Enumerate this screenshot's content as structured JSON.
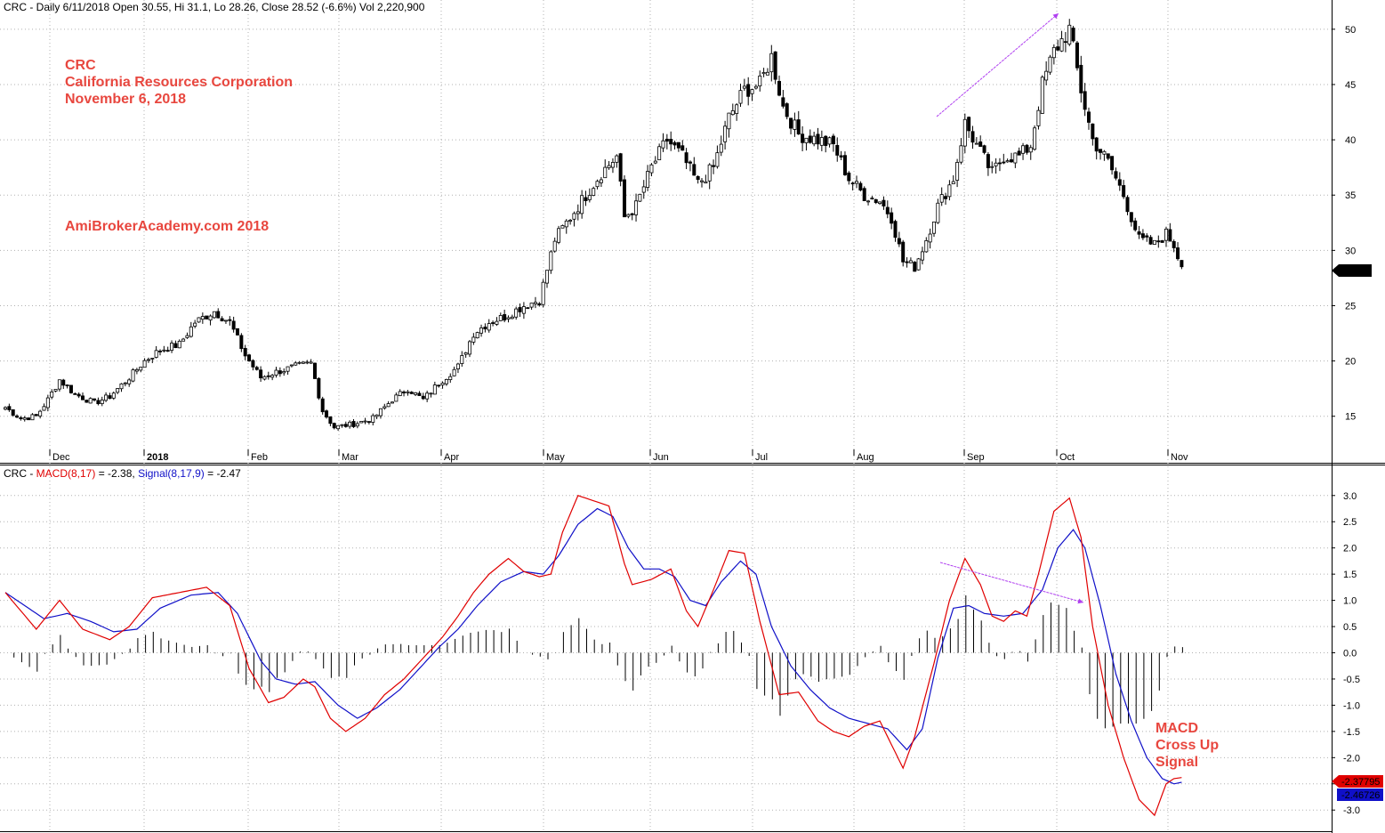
{
  "header_price": {
    "symbol": "CRC",
    "text": "CRC - Daily 6/11/2018 Open 30.55, Hi 31.1, Lo 28.26, Close 28.52 (-6.6%) Vol 2,220,900"
  },
  "header_macd": {
    "prefix": "CRC - ",
    "macd_label": "MACD(8,17)",
    "macd_value": " = -2.38, ",
    "signal_label": "Signal(8,17,9)",
    "signal_value": " = -2.47"
  },
  "annotations": {
    "ticker": "CRC",
    "company": "California Resources Corporation",
    "date": "November 6, 2018",
    "site": "AmiBrokerAcademy.com  2018",
    "macd_note": [
      "MACD",
      "Cross Up",
      "Signal"
    ]
  },
  "colors": {
    "macd_line": "#e00000",
    "signal_line": "#1010c8",
    "annotation_text": "#e8473f",
    "arrow": "#b040f0",
    "up_candle": "#ffffff",
    "down_candle": "#000000"
  },
  "chart_data": [
    {
      "type": "candlestick",
      "title": "CRC - Daily",
      "ylim": [
        12,
        52
      ],
      "y_ticks": [
        15,
        20,
        25,
        30,
        35,
        40,
        45,
        50
      ],
      "y_tick_labels": [
        "15",
        "20",
        "25",
        "30",
        "35",
        "40",
        "45",
        "50"
      ],
      "month_labels": [
        "Dec",
        "2018",
        "Feb",
        "Mar",
        "Apr",
        "May",
        "Jun",
        "Jul",
        "Aug",
        "Sep",
        "Oct",
        "Nov"
      ],
      "last_price_label": "28.52",
      "last_price": 28.52,
      "grid": true,
      "close_anchors": [
        [
          0,
          15.8
        ],
        [
          4,
          14.8
        ],
        [
          8,
          15.0
        ],
        [
          11,
          16.5
        ],
        [
          14,
          18.3
        ],
        [
          18,
          17.0
        ],
        [
          23,
          16.2
        ],
        [
          27,
          16.8
        ],
        [
          32,
          18.5
        ],
        [
          36,
          20.0
        ],
        [
          40,
          21.0
        ],
        [
          45,
          21.5
        ],
        [
          49,
          23.5
        ],
        [
          54,
          24.5
        ],
        [
          58,
          23.5
        ],
        [
          62,
          20.5
        ],
        [
          66,
          18.5
        ],
        [
          70,
          19.0
        ],
        [
          75,
          19.5
        ],
        [
          79,
          19.8
        ],
        [
          82,
          15.5
        ],
        [
          85,
          14.0
        ],
        [
          90,
          14.3
        ],
        [
          95,
          14.8
        ],
        [
          100,
          16.5
        ],
        [
          104,
          17.5
        ],
        [
          108,
          16.5
        ],
        [
          112,
          18.0
        ],
        [
          117,
          19.5
        ],
        [
          121,
          22.5
        ],
        [
          125,
          23.5
        ],
        [
          129,
          24.0
        ],
        [
          134,
          25.0
        ],
        [
          138,
          25.5
        ],
        [
          142,
          31.0
        ],
        [
          146,
          33.0
        ],
        [
          150,
          35.0
        ],
        [
          154,
          37.0
        ],
        [
          158,
          38.5
        ],
        [
          160,
          33.0
        ],
        [
          163,
          34.0
        ],
        [
          167,
          37.5
        ],
        [
          171,
          40.0
        ],
        [
          175,
          38.5
        ],
        [
          179,
          36.0
        ],
        [
          183,
          37.5
        ],
        [
          187,
          42.0
        ],
        [
          191,
          44.5
        ],
        [
          195,
          45.0
        ],
        [
          198,
          47.5
        ],
        [
          201,
          43.0
        ],
        [
          205,
          40.5
        ],
        [
          210,
          40.0
        ],
        [
          214,
          39.5
        ],
        [
          218,
          36.5
        ],
        [
          222,
          35.0
        ],
        [
          226,
          34.5
        ],
        [
          229,
          33.0
        ],
        [
          232,
          29.0
        ],
        [
          235,
          28.5
        ],
        [
          238,
          31.0
        ],
        [
          241,
          34.0
        ],
        [
          245,
          36.5
        ],
        [
          248,
          41.5
        ],
        [
          251,
          39.5
        ],
        [
          255,
          37.0
        ],
        [
          258,
          38.5
        ],
        [
          262,
          38.5
        ],
        [
          265,
          39.5
        ],
        [
          268,
          45.0
        ],
        [
          271,
          48.0
        ],
        [
          275,
          50.0
        ],
        [
          278,
          44.5
        ],
        [
          281,
          40.0
        ],
        [
          285,
          38.0
        ],
        [
          289,
          35.0
        ],
        [
          293,
          31.0
        ],
        [
          297,
          30.5
        ],
        [
          300,
          31.5
        ],
        [
          302,
          30.5
        ],
        [
          304,
          28.52
        ]
      ]
    },
    {
      "type": "line",
      "title": "MACD(8,17), Signal(8,17,9)",
      "ylim": [
        -3.2,
        3.2
      ],
      "y_ticks": [
        -3.0,
        -2.5,
        -2.0,
        -1.5,
        -1.0,
        -0.5,
        0.0,
        0.5,
        1.0,
        1.5,
        2.0,
        2.5,
        3.0
      ],
      "y_tick_labels": [
        "-3.0",
        "-2.5",
        "-2.0",
        "-1.5",
        "-1.0",
        "-0.5",
        "0.0",
        "0.5",
        "1.0",
        "1.5",
        "2.0",
        "2.5",
        "3.0"
      ],
      "last_values": {
        "macd": -2.37795,
        "signal": -2.46726
      },
      "last_value_labels": {
        "macd": "-2.37795",
        "signal": "-2.46726"
      },
      "series": [
        {
          "name": "MACD(8,17)",
          "color": "#e00000",
          "points": [
            [
              0,
              1.15
            ],
            [
              8,
              0.45
            ],
            [
              14,
              1.0
            ],
            [
              20,
              0.45
            ],
            [
              27,
              0.25
            ],
            [
              32,
              0.5
            ],
            [
              38,
              1.05
            ],
            [
              45,
              1.15
            ],
            [
              52,
              1.25
            ],
            [
              58,
              0.9
            ],
            [
              63,
              -0.3
            ],
            [
              68,
              -0.95
            ],
            [
              72,
              -0.85
            ],
            [
              77,
              -0.5
            ],
            [
              80,
              -0.65
            ],
            [
              84,
              -1.25
            ],
            [
              88,
              -1.5
            ],
            [
              93,
              -1.25
            ],
            [
              98,
              -0.8
            ],
            [
              103,
              -0.5
            ],
            [
              108,
              -0.1
            ],
            [
              113,
              0.3
            ],
            [
              117,
              0.7
            ],
            [
              121,
              1.15
            ],
            [
              125,
              1.5
            ],
            [
              130,
              1.8
            ],
            [
              134,
              1.55
            ],
            [
              138,
              1.45
            ],
            [
              141,
              1.5
            ],
            [
              144,
              2.3
            ],
            [
              148,
              3.0
            ],
            [
              152,
              2.9
            ],
            [
              156,
              2.8
            ],
            [
              160,
              1.7
            ],
            [
              162,
              1.3
            ],
            [
              167,
              1.4
            ],
            [
              172,
              1.6
            ],
            [
              176,
              0.8
            ],
            [
              179,
              0.5
            ],
            [
              183,
              1.2
            ],
            [
              187,
              1.95
            ],
            [
              191,
              1.9
            ],
            [
              195,
              0.6
            ],
            [
              200,
              -0.8
            ],
            [
              205,
              -0.75
            ],
            [
              210,
              -1.3
            ],
            [
              214,
              -1.5
            ],
            [
              218,
              -1.6
            ],
            [
              222,
              -1.4
            ],
            [
              226,
              -1.3
            ],
            [
              229,
              -1.75
            ],
            [
              232,
              -2.2
            ],
            [
              235,
              -1.6
            ],
            [
              240,
              -0.2
            ],
            [
              244,
              1.0
            ],
            [
              248,
              1.8
            ],
            [
              252,
              1.3
            ],
            [
              255,
              0.7
            ],
            [
              258,
              0.6
            ],
            [
              261,
              0.8
            ],
            [
              264,
              0.7
            ],
            [
              267,
              1.5
            ],
            [
              271,
              2.7
            ],
            [
              275,
              2.95
            ],
            [
              278,
              2.2
            ],
            [
              281,
              0.5
            ],
            [
              285,
              -1.0
            ],
            [
              289,
              -2.0
            ],
            [
              293,
              -2.8
            ],
            [
              297,
              -3.1
            ],
            [
              300,
              -2.5
            ],
            [
              302,
              -2.4
            ],
            [
              304,
              -2.38
            ]
          ]
        },
        {
          "name": "Signal(8,17,9)",
          "color": "#1010c8",
          "points": [
            [
              0,
              1.15
            ],
            [
              6,
              0.85
            ],
            [
              10,
              0.65
            ],
            [
              16,
              0.75
            ],
            [
              22,
              0.6
            ],
            [
              28,
              0.4
            ],
            [
              34,
              0.45
            ],
            [
              40,
              0.85
            ],
            [
              48,
              1.1
            ],
            [
              55,
              1.15
            ],
            [
              60,
              0.75
            ],
            [
              66,
              -0.15
            ],
            [
              70,
              -0.5
            ],
            [
              75,
              -0.6
            ],
            [
              80,
              -0.55
            ],
            [
              86,
              -1.0
            ],
            [
              91,
              -1.25
            ],
            [
              96,
              -1.05
            ],
            [
              102,
              -0.7
            ],
            [
              107,
              -0.3
            ],
            [
              112,
              0.1
            ],
            [
              117,
              0.45
            ],
            [
              122,
              0.9
            ],
            [
              128,
              1.35
            ],
            [
              134,
              1.55
            ],
            [
              139,
              1.5
            ],
            [
              143,
              1.85
            ],
            [
              148,
              2.45
            ],
            [
              153,
              2.75
            ],
            [
              157,
              2.6
            ],
            [
              161,
              2.0
            ],
            [
              165,
              1.6
            ],
            [
              169,
              1.6
            ],
            [
              173,
              1.45
            ],
            [
              177,
              1.0
            ],
            [
              181,
              0.9
            ],
            [
              185,
              1.35
            ],
            [
              190,
              1.75
            ],
            [
              194,
              1.5
            ],
            [
              198,
              0.5
            ],
            [
              203,
              -0.25
            ],
            [
              208,
              -0.7
            ],
            [
              213,
              -1.05
            ],
            [
              218,
              -1.25
            ],
            [
              223,
              -1.35
            ],
            [
              228,
              -1.45
            ],
            [
              233,
              -1.85
            ],
            [
              237,
              -1.45
            ],
            [
              241,
              -0.1
            ],
            [
              245,
              0.85
            ],
            [
              249,
              0.9
            ],
            [
              253,
              0.75
            ],
            [
              258,
              0.7
            ],
            [
              263,
              0.75
            ],
            [
              268,
              1.2
            ],
            [
              272,
              2.0
            ],
            [
              276,
              2.35
            ],
            [
              279,
              2.0
            ],
            [
              283,
              0.9
            ],
            [
              287,
              -0.4
            ],
            [
              291,
              -1.3
            ],
            [
              295,
              -2.0
            ],
            [
              299,
              -2.4
            ],
            [
              302,
              -2.5
            ],
            [
              304,
              -2.47
            ]
          ]
        }
      ]
    }
  ]
}
